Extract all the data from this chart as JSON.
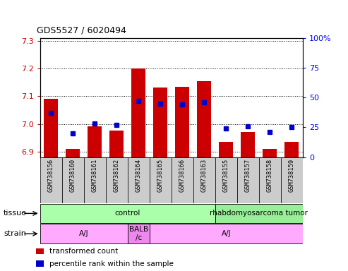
{
  "title": "GDS5527 / 6020494",
  "samples": [
    "GSM738156",
    "GSM738160",
    "GSM738161",
    "GSM738162",
    "GSM738164",
    "GSM738165",
    "GSM738166",
    "GSM738163",
    "GSM738155",
    "GSM738157",
    "GSM738158",
    "GSM738159"
  ],
  "transformed_count": [
    7.09,
    6.91,
    6.99,
    6.975,
    7.2,
    7.13,
    7.135,
    7.155,
    6.935,
    6.97,
    6.91,
    6.935
  ],
  "percentile_rank": [
    37,
    20,
    28,
    27,
    47,
    45,
    44,
    46,
    24,
    26,
    21,
    25
  ],
  "ylim_left": [
    6.88,
    7.31
  ],
  "ylim_right": [
    0,
    100
  ],
  "yticks_left": [
    6.9,
    7.0,
    7.1,
    7.2,
    7.3
  ],
  "yticks_right": [
    0,
    25,
    50,
    75,
    100
  ],
  "bar_color": "#cc0000",
  "dot_color": "#0000cc",
  "bar_bottom": 6.88,
  "tissue_groups": [
    {
      "label": "control",
      "start": 0,
      "end": 8,
      "color": "#aaffaa"
    },
    {
      "label": "rhabdomyosarcoma tumor",
      "start": 8,
      "end": 12,
      "color": "#99ee99"
    }
  ],
  "strain_groups": [
    {
      "label": "A/J",
      "start": 0,
      "end": 4,
      "color": "#ffaaff"
    },
    {
      "label": "BALB\n/c",
      "start": 4,
      "end": 5,
      "color": "#ee88ee"
    },
    {
      "label": "A/J",
      "start": 5,
      "end": 12,
      "color": "#ffaaff"
    }
  ],
  "legend_items": [
    {
      "color": "#cc0000",
      "label": "transformed count"
    },
    {
      "color": "#0000cc",
      "label": "percentile rank within the sample"
    }
  ]
}
